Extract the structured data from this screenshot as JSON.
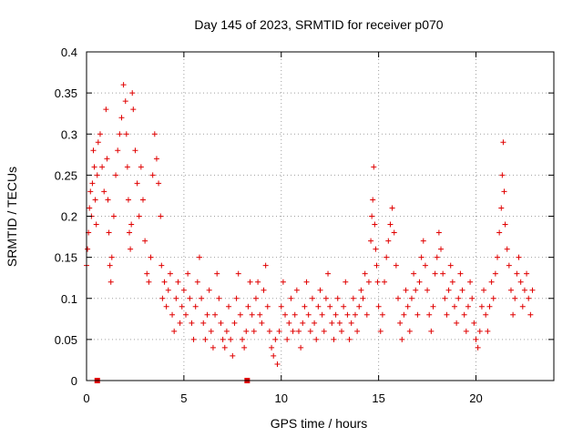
{
  "chart_data": {
    "type": "scatter",
    "title": "Day 145 of 2023, SRMTID for receiver p070",
    "xlabel": "GPS time / hours",
    "ylabel": "SRMTID / TECUs",
    "xlim": [
      0,
      24
    ],
    "ylim": [
      0,
      0.4
    ],
    "grid": true,
    "marker": "+",
    "color": "#e00000",
    "x_ticks": [
      0,
      5,
      10,
      15,
      20
    ],
    "y_ticks": [
      0,
      0.05,
      0.1,
      0.15,
      0.2,
      0.25,
      0.3,
      0.35,
      0.4
    ],
    "x_tick_labels": [
      "0",
      "5",
      "10",
      "15",
      "20"
    ],
    "y_tick_labels": [
      "0",
      "0.05",
      "0.1",
      "0.15",
      "0.2",
      "0.25",
      "0.3",
      "0.35",
      "0.4"
    ],
    "gap_markers": [
      {
        "x": 0.55,
        "y": 0
      },
      {
        "x": 8.25,
        "y": 0
      }
    ],
    "series": [
      {
        "name": "SRMTID",
        "points": [
          [
            0.0,
            0.14
          ],
          [
            0.05,
            0.16
          ],
          [
            0.1,
            0.18
          ],
          [
            0.15,
            0.21
          ],
          [
            0.2,
            0.23
          ],
          [
            0.25,
            0.2
          ],
          [
            0.3,
            0.24
          ],
          [
            0.35,
            0.28
          ],
          [
            0.4,
            0.26
          ],
          [
            0.45,
            0.22
          ],
          [
            0.5,
            0.19
          ],
          [
            0.55,
            0.25
          ],
          [
            0.6,
            0.29
          ],
          [
            0.7,
            0.3
          ],
          [
            0.8,
            0.26
          ],
          [
            0.9,
            0.23
          ],
          [
            1.0,
            0.33
          ],
          [
            1.05,
            0.27
          ],
          [
            1.1,
            0.22
          ],
          [
            1.15,
            0.18
          ],
          [
            1.2,
            0.14
          ],
          [
            1.25,
            0.12
          ],
          [
            1.3,
            0.15
          ],
          [
            1.4,
            0.2
          ],
          [
            1.5,
            0.25
          ],
          [
            1.6,
            0.28
          ],
          [
            1.7,
            0.3
          ],
          [
            1.8,
            0.32
          ],
          [
            1.9,
            0.36
          ],
          [
            2.0,
            0.34
          ],
          [
            2.05,
            0.3
          ],
          [
            2.1,
            0.26
          ],
          [
            2.15,
            0.22
          ],
          [
            2.2,
            0.18
          ],
          [
            2.25,
            0.16
          ],
          [
            2.3,
            0.19
          ],
          [
            2.35,
            0.35
          ],
          [
            2.4,
            0.33
          ],
          [
            2.5,
            0.28
          ],
          [
            2.6,
            0.24
          ],
          [
            2.7,
            0.2
          ],
          [
            2.8,
            0.26
          ],
          [
            2.9,
            0.22
          ],
          [
            3.0,
            0.17
          ],
          [
            3.1,
            0.13
          ],
          [
            3.2,
            0.12
          ],
          [
            3.3,
            0.15
          ],
          [
            3.4,
            0.25
          ],
          [
            3.5,
            0.3
          ],
          [
            3.6,
            0.27
          ],
          [
            3.7,
            0.24
          ],
          [
            3.8,
            0.2
          ],
          [
            3.85,
            0.14
          ],
          [
            3.9,
            0.1
          ],
          [
            4.0,
            0.12
          ],
          [
            4.1,
            0.09
          ],
          [
            4.2,
            0.11
          ],
          [
            4.3,
            0.13
          ],
          [
            4.4,
            0.08
          ],
          [
            4.5,
            0.06
          ],
          [
            4.6,
            0.1
          ],
          [
            4.7,
            0.12
          ],
          [
            4.8,
            0.07
          ],
          [
            4.9,
            0.09
          ],
          [
            5.0,
            0.11
          ],
          [
            5.1,
            0.08
          ],
          [
            5.2,
            0.13
          ],
          [
            5.3,
            0.1
          ],
          [
            5.4,
            0.07
          ],
          [
            5.5,
            0.05
          ],
          [
            5.6,
            0.09
          ],
          [
            5.7,
            0.12
          ],
          [
            5.8,
            0.15
          ],
          [
            5.9,
            0.1
          ],
          [
            6.0,
            0.07
          ],
          [
            6.1,
            0.05
          ],
          [
            6.2,
            0.08
          ],
          [
            6.3,
            0.11
          ],
          [
            6.4,
            0.06
          ],
          [
            6.5,
            0.04
          ],
          [
            6.6,
            0.08
          ],
          [
            6.7,
            0.13
          ],
          [
            6.8,
            0.1
          ],
          [
            6.9,
            0.07
          ],
          [
            7.0,
            0.05
          ],
          [
            7.1,
            0.04
          ],
          [
            7.2,
            0.06
          ],
          [
            7.3,
            0.09
          ],
          [
            7.4,
            0.05
          ],
          [
            7.5,
            0.03
          ],
          [
            7.6,
            0.07
          ],
          [
            7.7,
            0.1
          ],
          [
            7.8,
            0.13
          ],
          [
            7.9,
            0.08
          ],
          [
            8.0,
            0.05
          ],
          [
            8.1,
            0.04
          ],
          [
            8.2,
            0.06
          ],
          [
            8.3,
            0.09
          ],
          [
            8.4,
            0.12
          ],
          [
            8.5,
            0.08
          ],
          [
            8.6,
            0.06
          ],
          [
            8.7,
            0.1
          ],
          [
            8.8,
            0.12
          ],
          [
            8.9,
            0.08
          ],
          [
            9.0,
            0.07
          ],
          [
            9.1,
            0.11
          ],
          [
            9.2,
            0.14
          ],
          [
            9.3,
            0.09
          ],
          [
            9.4,
            0.06
          ],
          [
            9.5,
            0.04
          ],
          [
            9.6,
            0.03
          ],
          [
            9.7,
            0.05
          ],
          [
            9.8,
            0.02
          ],
          [
            9.9,
            0.06
          ],
          [
            10.0,
            0.09
          ],
          [
            10.1,
            0.12
          ],
          [
            10.2,
            0.08
          ],
          [
            10.3,
            0.05
          ],
          [
            10.4,
            0.07
          ],
          [
            10.5,
            0.1
          ],
          [
            10.6,
            0.06
          ],
          [
            10.7,
            0.08
          ],
          [
            10.8,
            0.11
          ],
          [
            10.9,
            0.06
          ],
          [
            11.0,
            0.04
          ],
          [
            11.1,
            0.07
          ],
          [
            11.2,
            0.09
          ],
          [
            11.3,
            0.12
          ],
          [
            11.4,
            0.08
          ],
          [
            11.5,
            0.06
          ],
          [
            11.6,
            0.1
          ],
          [
            11.7,
            0.07
          ],
          [
            11.8,
            0.05
          ],
          [
            11.9,
            0.09
          ],
          [
            12.0,
            0.11
          ],
          [
            12.1,
            0.08
          ],
          [
            12.2,
            0.06
          ],
          [
            12.3,
            0.1
          ],
          [
            12.4,
            0.13
          ],
          [
            12.5,
            0.09
          ],
          [
            12.6,
            0.07
          ],
          [
            12.7,
            0.05
          ],
          [
            12.8,
            0.08
          ],
          [
            12.9,
            0.1
          ],
          [
            13.0,
            0.07
          ],
          [
            13.1,
            0.06
          ],
          [
            13.2,
            0.09
          ],
          [
            13.3,
            0.12
          ],
          [
            13.4,
            0.08
          ],
          [
            13.5,
            0.05
          ],
          [
            13.6,
            0.07
          ],
          [
            13.7,
            0.1
          ],
          [
            13.8,
            0.08
          ],
          [
            13.9,
            0.06
          ],
          [
            14.0,
            0.09
          ],
          [
            14.1,
            0.11
          ],
          [
            14.2,
            0.1
          ],
          [
            14.3,
            0.13
          ],
          [
            14.4,
            0.08
          ],
          [
            14.5,
            0.12
          ],
          [
            14.6,
            0.17
          ],
          [
            14.65,
            0.2
          ],
          [
            14.7,
            0.22
          ],
          [
            14.75,
            0.26
          ],
          [
            14.8,
            0.19
          ],
          [
            14.85,
            0.16
          ],
          [
            14.9,
            0.14
          ],
          [
            14.95,
            0.12
          ],
          [
            15.0,
            0.09
          ],
          [
            15.1,
            0.06
          ],
          [
            15.2,
            0.08
          ],
          [
            15.3,
            0.12
          ],
          [
            15.4,
            0.15
          ],
          [
            15.5,
            0.17
          ],
          [
            15.6,
            0.19
          ],
          [
            15.7,
            0.21
          ],
          [
            15.8,
            0.18
          ],
          [
            15.9,
            0.14
          ],
          [
            16.0,
            0.1
          ],
          [
            16.1,
            0.07
          ],
          [
            16.2,
            0.05
          ],
          [
            16.3,
            0.08
          ],
          [
            16.4,
            0.11
          ],
          [
            16.5,
            0.09
          ],
          [
            16.6,
            0.06
          ],
          [
            16.7,
            0.1
          ],
          [
            16.8,
            0.13
          ],
          [
            16.9,
            0.11
          ],
          [
            17.0,
            0.08
          ],
          [
            17.1,
            0.12
          ],
          [
            17.2,
            0.15
          ],
          [
            17.3,
            0.17
          ],
          [
            17.4,
            0.14
          ],
          [
            17.5,
            0.11
          ],
          [
            17.6,
            0.08
          ],
          [
            17.7,
            0.06
          ],
          [
            17.8,
            0.09
          ],
          [
            17.9,
            0.13
          ],
          [
            18.0,
            0.15
          ],
          [
            18.1,
            0.18
          ],
          [
            18.2,
            0.16
          ],
          [
            18.3,
            0.13
          ],
          [
            18.4,
            0.1
          ],
          [
            18.5,
            0.08
          ],
          [
            18.6,
            0.11
          ],
          [
            18.7,
            0.14
          ],
          [
            18.8,
            0.12
          ],
          [
            18.9,
            0.09
          ],
          [
            19.0,
            0.07
          ],
          [
            19.1,
            0.1
          ],
          [
            19.2,
            0.13
          ],
          [
            19.3,
            0.11
          ],
          [
            19.4,
            0.08
          ],
          [
            19.5,
            0.06
          ],
          [
            19.6,
            0.09
          ],
          [
            19.7,
            0.12
          ],
          [
            19.8,
            0.1
          ],
          [
            19.9,
            0.07
          ],
          [
            20.0,
            0.05
          ],
          [
            20.1,
            0.04
          ],
          [
            20.2,
            0.06
          ],
          [
            20.3,
            0.09
          ],
          [
            20.4,
            0.11
          ],
          [
            20.5,
            0.08
          ],
          [
            20.6,
            0.06
          ],
          [
            20.7,
            0.09
          ],
          [
            20.8,
            0.12
          ],
          [
            20.9,
            0.1
          ],
          [
            21.0,
            0.13
          ],
          [
            21.1,
            0.15
          ],
          [
            21.2,
            0.18
          ],
          [
            21.3,
            0.21
          ],
          [
            21.35,
            0.25
          ],
          [
            21.4,
            0.29
          ],
          [
            21.45,
            0.23
          ],
          [
            21.5,
            0.19
          ],
          [
            21.6,
            0.16
          ],
          [
            21.7,
            0.14
          ],
          [
            21.8,
            0.11
          ],
          [
            21.9,
            0.08
          ],
          [
            22.0,
            0.1
          ],
          [
            22.1,
            0.13
          ],
          [
            22.2,
            0.15
          ],
          [
            22.3,
            0.12
          ],
          [
            22.4,
            0.09
          ],
          [
            22.5,
            0.11
          ],
          [
            22.6,
            0.13
          ],
          [
            22.7,
            0.1
          ],
          [
            22.8,
            0.08
          ],
          [
            22.9,
            0.11
          ]
        ]
      }
    ]
  }
}
